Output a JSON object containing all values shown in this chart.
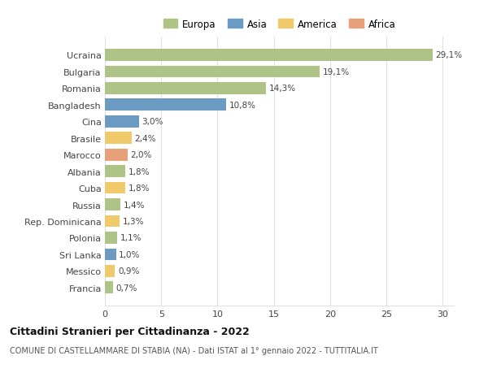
{
  "countries": [
    "Ucraina",
    "Bulgaria",
    "Romania",
    "Bangladesh",
    "Cina",
    "Brasile",
    "Marocco",
    "Albania",
    "Cuba",
    "Russia",
    "Rep. Dominicana",
    "Polonia",
    "Sri Lanka",
    "Messico",
    "Francia"
  ],
  "values": [
    29.1,
    19.1,
    14.3,
    10.8,
    3.0,
    2.4,
    2.0,
    1.8,
    1.8,
    1.4,
    1.3,
    1.1,
    1.0,
    0.9,
    0.7
  ],
  "labels": [
    "29,1%",
    "19,1%",
    "14,3%",
    "10,8%",
    "3,0%",
    "2,4%",
    "2,0%",
    "1,8%",
    "1,8%",
    "1,4%",
    "1,3%",
    "1,1%",
    "1,0%",
    "0,9%",
    "0,7%"
  ],
  "continents": [
    "Europa",
    "Europa",
    "Europa",
    "Asia",
    "Asia",
    "America",
    "Africa",
    "Europa",
    "America",
    "Europa",
    "America",
    "Europa",
    "Asia",
    "America",
    "Europa"
  ],
  "colors": {
    "Europa": "#aec487",
    "Asia": "#6b9bc3",
    "America": "#f0c96a",
    "Africa": "#e8a07a"
  },
  "legend_order": [
    "Europa",
    "Asia",
    "America",
    "Africa"
  ],
  "title": "Cittadini Stranieri per Cittadinanza - 2022",
  "subtitle": "COMUNE DI CASTELLAMMARE DI STABIA (NA) - Dati ISTAT al 1° gennaio 2022 - TUTTITALIA.IT",
  "xlim": [
    0,
    31
  ],
  "xticks": [
    0,
    5,
    10,
    15,
    20,
    25,
    30
  ],
  "bg_color": "#ffffff",
  "grid_color": "#e0e0e0",
  "bar_height": 0.72
}
